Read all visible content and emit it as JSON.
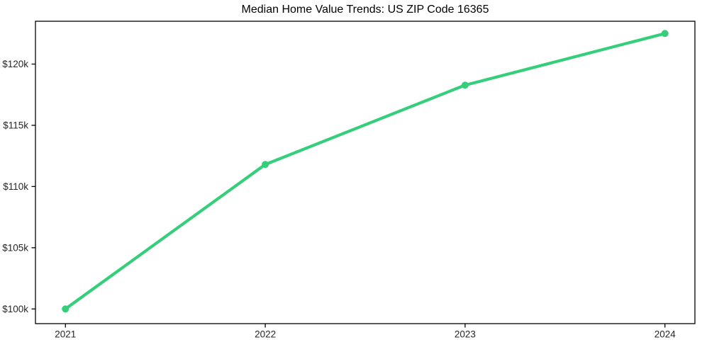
{
  "chart_data": {
    "type": "line",
    "title": "Median Home Value Trends: US ZIP Code 16365",
    "xlabel": "",
    "ylabel": "",
    "x": [
      2021,
      2022,
      2023,
      2024
    ],
    "values": [
      100000,
      111800,
      118280,
      122500
    ],
    "x_tick_labels": [
      "2021",
      "2022",
      "2023",
      "2024"
    ],
    "x_tick_values": [
      2021,
      2022,
      2023,
      2024
    ],
    "y_tick_labels": [
      "$100k",
      "$105k",
      "$110k",
      "$115k",
      "$120k"
    ],
    "y_tick_values": [
      100000,
      105000,
      110000,
      115000,
      120000
    ],
    "xlim": [
      2020.85,
      2024.15
    ],
    "ylim": [
      98800,
      123500
    ],
    "grid": false,
    "legend": "none",
    "line_color": "#35ce7b",
    "marker": "circle",
    "line_width": 4.2,
    "marker_radius": 5,
    "spine_color": "#000000",
    "tick_text_color": "#262626",
    "background_color": "#ffffff"
  }
}
